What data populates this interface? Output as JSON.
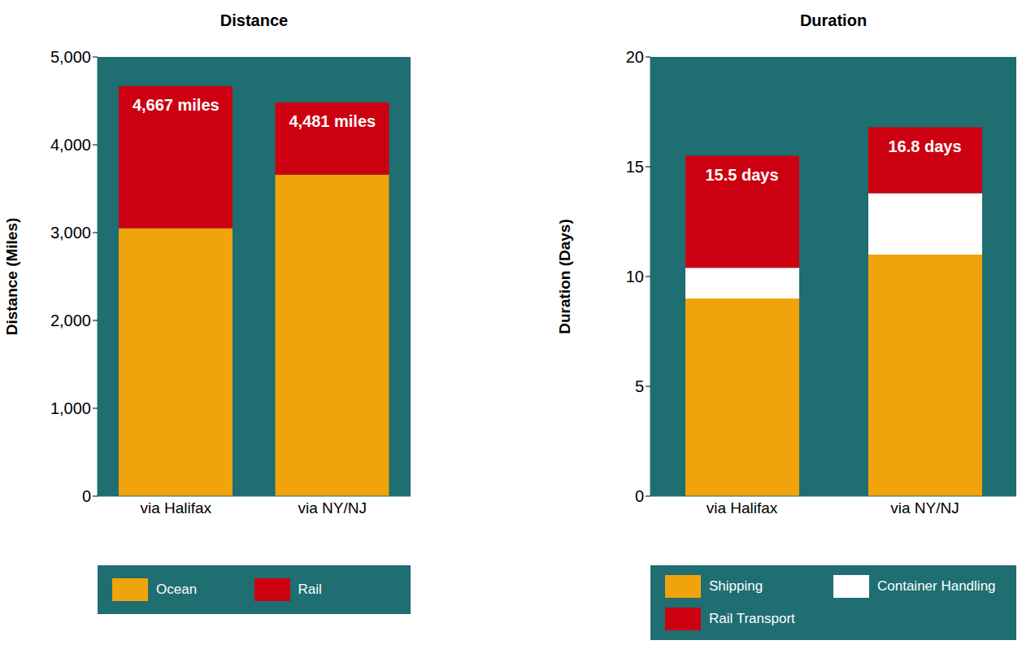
{
  "chart_data": [
    {
      "type": "bar",
      "title": "Distance",
      "stacked": true,
      "categories": [
        "via Halifax",
        "via NY/NJ"
      ],
      "series": [
        {
          "name": "Ocean",
          "color": "#f0a30a",
          "values": [
            3050,
            3660
          ]
        },
        {
          "name": "Rail",
          "color": "#cc0010",
          "values": [
            1617,
            821
          ]
        }
      ],
      "totals": [
        4667,
        4481
      ],
      "total_labels": [
        "4,667 miles",
        "4,481 miles"
      ],
      "y_label": "Distance (Miles)",
      "ylim": [
        0,
        5000
      ],
      "yticks": [
        0,
        {
          "value": 1000,
          "label": "1,000"
        },
        {
          "value": 2000,
          "label": "2,000"
        },
        {
          "value": 3000,
          "label": "3,000"
        },
        {
          "value": 4000,
          "label": "4,000"
        },
        {
          "value": 5000,
          "label": "5,000"
        }
      ],
      "legend": "bottom"
    },
    {
      "type": "bar",
      "title": "Duration",
      "stacked": true,
      "categories": [
        "via Halifax",
        "via NY/NJ"
      ],
      "series": [
        {
          "name": "Shipping",
          "color": "#f0a30a",
          "values": [
            9,
            11
          ]
        },
        {
          "name": "Container Handling",
          "color": "#ffffff",
          "values": [
            1.4,
            2.8
          ]
        },
        {
          "name": "Rail Transport",
          "color": "#cc0010",
          "values": [
            5.1,
            3.0
          ]
        }
      ],
      "totals": [
        15.5,
        16.8
      ],
      "total_labels": [
        "15.5 days",
        "16.8 days"
      ],
      "y_label": "Duration (Days)",
      "ylim": [
        0,
        20
      ],
      "yticks": [
        0,
        5,
        10,
        15,
        20
      ],
      "legend": "bottom"
    }
  ]
}
